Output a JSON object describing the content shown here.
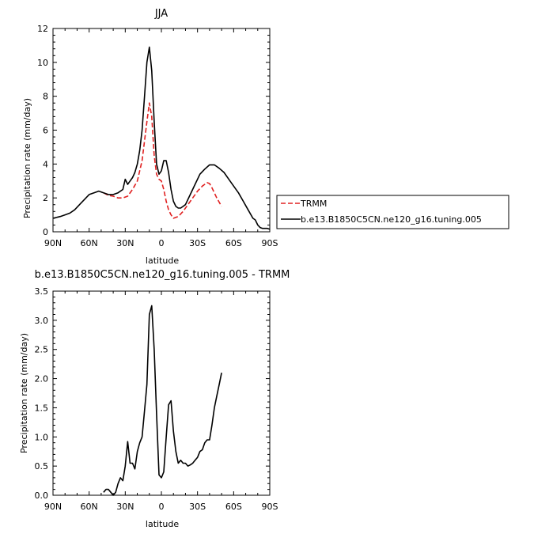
{
  "chart_data": [
    {
      "type": "line",
      "title": "JJA",
      "xlabel": "latitude",
      "ylabel": "Precipitation rate (mm/day)",
      "xticks": [
        "90N",
        "60N",
        "30N",
        "0",
        "30S",
        "60S",
        "90S"
      ],
      "yticks": [
        "0",
        "2",
        "4",
        "6",
        "8",
        "10",
        "12"
      ],
      "xlim": [
        90,
        -90
      ],
      "ylim": [
        0,
        12
      ],
      "legend_position": "right, outside plot",
      "series": [
        {
          "name": "TRMM",
          "color": "#e02020",
          "dash": "dashed",
          "x": [
            48,
            44,
            40,
            36,
            32,
            28,
            24,
            20,
            16,
            12,
            10,
            8,
            6,
            4,
            2,
            0,
            -2,
            -4,
            -6,
            -8,
            -10,
            -14,
            -18,
            -22,
            -26,
            -30,
            -34,
            -38,
            -40,
            -42,
            -46,
            -50
          ],
          "y": [
            2.3,
            2.15,
            2.1,
            2.0,
            2.0,
            2.1,
            2.5,
            3.0,
            4.2,
            6.5,
            7.6,
            6.8,
            4.5,
            3.4,
            3.1,
            3.0,
            2.5,
            1.8,
            1.3,
            1.0,
            0.8,
            0.9,
            1.2,
            1.6,
            2.0,
            2.4,
            2.7,
            2.9,
            2.85,
            2.6,
            2.0,
            1.5
          ]
        },
        {
          "name": "b.e13.B1850C5CN.ne120_g16.tuning.005",
          "color": "#000000",
          "dash": "solid",
          "x": [
            90,
            84,
            80,
            76,
            72,
            68,
            64,
            60,
            56,
            52,
            48,
            44,
            40,
            36,
            32,
            30,
            28,
            26,
            24,
            22,
            20,
            18,
            16,
            14,
            12,
            10,
            8,
            6,
            4,
            2,
            0,
            -2,
            -4,
            -6,
            -8,
            -10,
            -12,
            -14,
            -16,
            -18,
            -20,
            -24,
            -28,
            -32,
            -36,
            -40,
            -44,
            -48,
            -52,
            -56,
            -60,
            -64,
            -68,
            -72,
            -76,
            -78,
            -80,
            -82,
            -84,
            -86,
            -88,
            -90
          ],
          "y": [
            0.8,
            0.9,
            1.0,
            1.1,
            1.3,
            1.6,
            1.9,
            2.2,
            2.3,
            2.4,
            2.3,
            2.2,
            2.2,
            2.3,
            2.5,
            3.1,
            2.8,
            3.0,
            3.2,
            3.5,
            4.0,
            4.8,
            6.0,
            8.0,
            10.0,
            10.9,
            9.5,
            6.5,
            4.0,
            3.4,
            3.6,
            4.2,
            4.2,
            3.5,
            2.5,
            1.8,
            1.5,
            1.4,
            1.4,
            1.5,
            1.6,
            2.2,
            2.8,
            3.4,
            3.7,
            3.95,
            3.95,
            3.75,
            3.5,
            3.1,
            2.7,
            2.3,
            1.8,
            1.3,
            0.8,
            0.7,
            0.4,
            0.25,
            0.2,
            0.2,
            0.2,
            0.15
          ]
        }
      ]
    },
    {
      "type": "line",
      "title": "b.e13.B1850C5CN.ne120_g16.tuning.005 - TRMM",
      "xlabel": "latitude",
      "ylabel": "Precipitation rate (mm/day)",
      "xticks": [
        "90N",
        "60N",
        "30N",
        "0",
        "30S",
        "60S",
        "90S"
      ],
      "yticks": [
        "0.0",
        "0.5",
        "1.0",
        "1.5",
        "2.0",
        "2.5",
        "3.0",
        "3.5"
      ],
      "xlim": [
        90,
        -90
      ],
      "ylim": [
        0,
        3.5
      ],
      "series": [
        {
          "color": "#000000",
          "dash": "solid",
          "x": [
            48,
            46,
            44,
            42,
            40,
            38,
            36,
            34,
            32,
            30,
            28,
            26,
            24,
            22,
            20,
            18,
            16,
            14,
            12,
            10,
            8,
            6,
            4,
            2,
            0,
            -2,
            -4,
            -6,
            -8,
            -10,
            -12,
            -14,
            -16,
            -18,
            -20,
            -22,
            -24,
            -26,
            -28,
            -30,
            -32,
            -34,
            -36,
            -38,
            -40,
            -42,
            -44,
            -46,
            -48,
            -50
          ],
          "y": [
            0.05,
            0.1,
            0.1,
            0.05,
            0.0,
            0.05,
            0.2,
            0.3,
            0.25,
            0.5,
            0.92,
            0.55,
            0.55,
            0.45,
            0.75,
            0.9,
            1.0,
            1.45,
            1.9,
            3.1,
            3.25,
            2.5,
            1.4,
            0.35,
            0.3,
            0.4,
            1.0,
            1.55,
            1.62,
            1.1,
            0.75,
            0.55,
            0.6,
            0.55,
            0.55,
            0.5,
            0.52,
            0.55,
            0.6,
            0.65,
            0.75,
            0.78,
            0.9,
            0.95,
            0.95,
            1.2,
            1.5,
            1.7,
            1.9,
            2.1
          ]
        }
      ]
    }
  ]
}
